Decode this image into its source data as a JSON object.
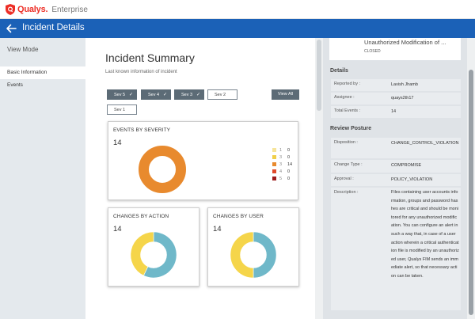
{
  "header": {
    "brand": "Qualys.",
    "edition": "Enterprise"
  },
  "titlebar": {
    "title": "Incident Details"
  },
  "sidebar": {
    "view_mode": "View Mode",
    "items": [
      {
        "label": "Basic Information",
        "active": true
      },
      {
        "label": "Events",
        "active": false
      }
    ]
  },
  "main": {
    "title": "Incident Summary",
    "subtitle": "Last known information of incident",
    "filters": [
      {
        "label": "Sev 5",
        "selected": true
      },
      {
        "label": "Sev 4",
        "selected": true
      },
      {
        "label": "Sev 3",
        "selected": true
      },
      {
        "label": "Sev 2",
        "selected": false
      },
      {
        "label": "Sev 1",
        "selected": false
      }
    ],
    "view_all": "View All",
    "severity_card": {
      "title": "EVENTS BY SEVERITY",
      "count": "14",
      "legend": [
        {
          "label": "1",
          "value": "0",
          "color": "#f6e49a"
        },
        {
          "label": "3",
          "value": "0",
          "color": "#f0cf4a"
        },
        {
          "label": "3",
          "value": "14",
          "color": "#e88a2e"
        },
        {
          "label": "4",
          "value": "0",
          "color": "#e04a2a"
        },
        {
          "label": "5",
          "value": "0",
          "color": "#9e1b1b"
        }
      ]
    },
    "action_card": {
      "title": "CHANGES BY ACTION",
      "count": "14"
    },
    "user_card": {
      "title": "CHANGES BY USER",
      "count": "14"
    }
  },
  "chart_data": [
    {
      "type": "pie",
      "title": "EVENTS BY SEVERITY",
      "categories": [
        "1",
        "3",
        "3",
        "4",
        "5"
      ],
      "values": [
        0,
        0,
        14,
        0,
        0
      ],
      "colors": [
        "#f6e49a",
        "#f0cf4a",
        "#e88a2e",
        "#e04a2a",
        "#9e1b1b"
      ],
      "donut": true,
      "legend": "right"
    },
    {
      "type": "pie",
      "title": "CHANGES BY ACTION",
      "values": [
        8,
        6
      ],
      "colors": [
        "#6fb8c9",
        "#f5d54a"
      ],
      "donut": true
    },
    {
      "type": "pie",
      "title": "CHANGES BY USER",
      "values": [
        7,
        7
      ],
      "colors": [
        "#6fb8c9",
        "#f5d54a"
      ],
      "donut": true
    }
  ],
  "detail": {
    "header_title": "Unauthorized Modification of ...",
    "header_status": "CLOSED",
    "details_heading": "Details",
    "reported_by_label": "Reported by :",
    "reported_by": "Lavish Jhamb",
    "assignee_label": "Assignee :",
    "assignee": "quays2th17",
    "total_events_label": "Total Events :",
    "total_events": "14",
    "review_heading": "Review Posture",
    "disposition_label": "Disposition :",
    "disposition": "CHANGE_CONTROL_VIOLATION",
    "change_type_label": "Change Type :",
    "change_type": "COMPROMISE",
    "approval_label": "Approval :",
    "approval": "POLICY_VIOLATION",
    "description_label": "Description :",
    "description": "Files containing user accounts information, groups and password hashes are critical and should be monitored for any unauthorized modification. You can configure an alert in such a way that, in case of a user action wherein a critical authentication file is modified by an unauthorized user, Qualys FIM sends an immediate alert, so that necessary action can be taken."
  }
}
